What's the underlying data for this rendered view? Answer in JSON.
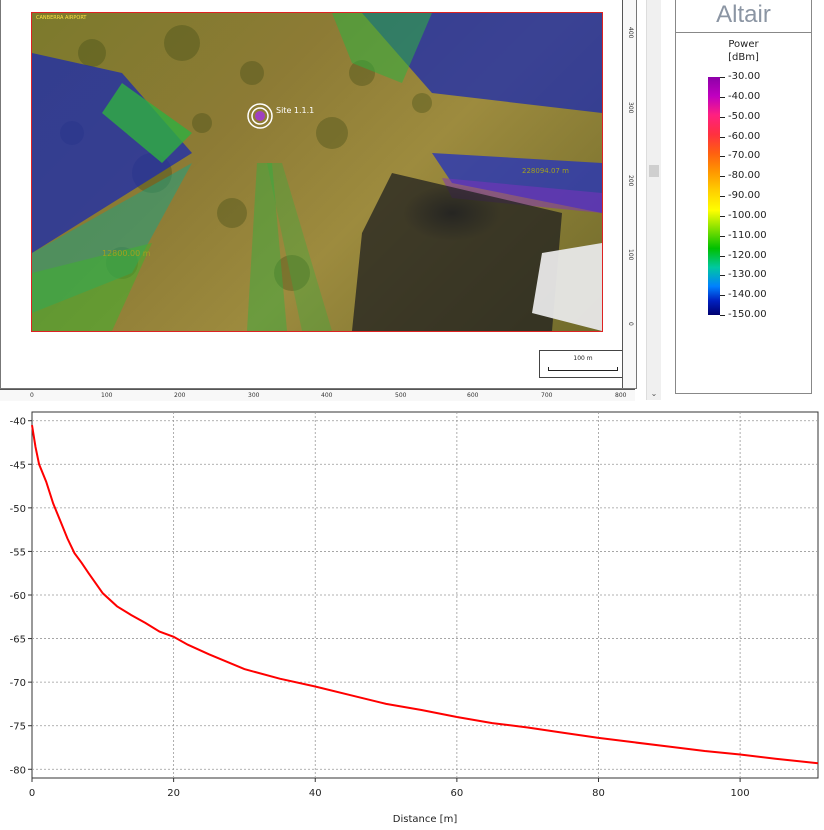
{
  "map": {
    "tag_text": "CANBERRA AIRPORT",
    "tx_label": "Site 1.1.1",
    "annotations": [
      "12800.00 m",
      "228094.07 m"
    ],
    "scale_label": "100 m",
    "ruler_bottom_ticks": [
      "0",
      "100",
      "200",
      "300",
      "400",
      "500",
      "600",
      "700",
      "800"
    ],
    "ruler_right_ticks": [
      "400",
      "300",
      "200",
      "100",
      "0"
    ]
  },
  "legend": {
    "brand": "Altair",
    "title_line1": "Power",
    "title_line2": "[dBm]",
    "values": [
      "-30.00",
      "-40.00",
      "-50.00",
      "-60.00",
      "-70.00",
      "-80.00",
      "-90.00",
      "-100.00",
      "-110.00",
      "-120.00",
      "-130.00",
      "-140.00",
      "-150.00"
    ]
  },
  "chart_data": {
    "type": "line",
    "xlabel": "Distance [m]",
    "ylabel": "",
    "xlim": [
      0,
      111
    ],
    "ylim": [
      -81,
      -39
    ],
    "x_ticks": [
      0,
      20,
      40,
      60,
      80,
      100
    ],
    "y_ticks": [
      -40,
      -45,
      -50,
      -55,
      -60,
      -65,
      -70,
      -75,
      -80
    ],
    "grid": true,
    "line_color": "#ff0000",
    "series": [
      {
        "x": [
          0,
          0.5,
          1,
          2,
          3,
          4,
          5,
          6,
          7,
          8,
          10,
          12,
          14,
          16,
          18,
          20,
          22,
          25,
          30,
          35,
          40,
          45,
          50,
          55,
          60,
          65,
          70,
          75,
          80,
          85,
          90,
          95,
          100,
          105,
          111
        ],
        "y": [
          -40.5,
          -43,
          -45,
          -47,
          -49.5,
          -51.5,
          -53.5,
          -55.2,
          -56.3,
          -57.5,
          -59.8,
          -61.3,
          -62.3,
          -63.2,
          -64.2,
          -64.8,
          -65.7,
          -66.8,
          -68.5,
          -69.6,
          -70.5,
          -71.5,
          -72.5,
          -73.2,
          -74,
          -74.7,
          -75.2,
          -75.8,
          -76.4,
          -76.9,
          -77.4,
          -77.9,
          -78.3,
          -78.8,
          -79.3
        ]
      }
    ]
  }
}
